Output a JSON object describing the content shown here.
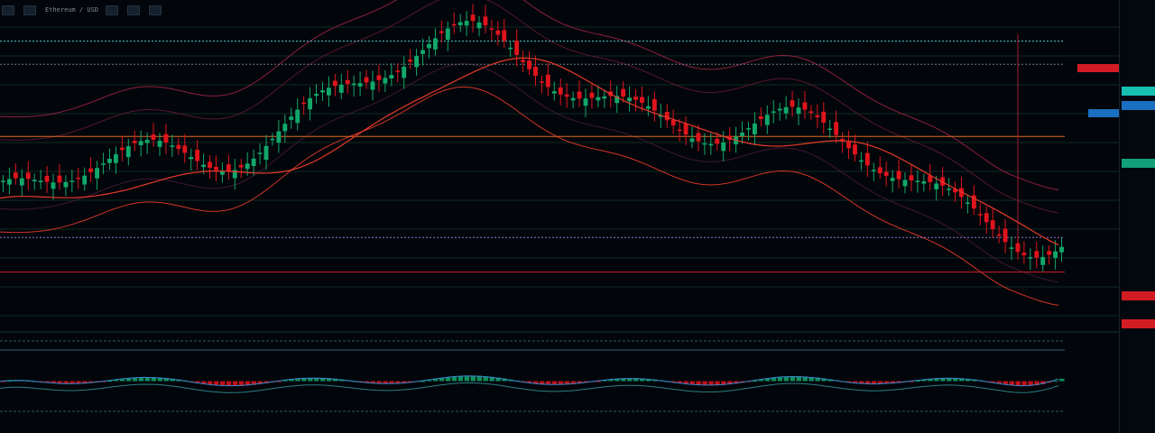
{
  "window": {
    "title": "Ethereum / USD",
    "center_title": "",
    "toolbar_buttons": [
      "toolbar-btn-1",
      "toolbar-btn-2",
      "toolbar-btn-3",
      "toolbar-btn-4",
      "toolbar-btn-5",
      "toolbar-btn-6"
    ]
  },
  "colors": {
    "background": "#02060b",
    "up_candle": "#12a86a",
    "down_candle": "#e0141c",
    "band": "#b0264a",
    "ma": "#e83a2a",
    "orange_line": "#e06a20",
    "cyan_line": "#4ad0d0",
    "grid": "#0f2a22"
  },
  "chart_data": {
    "type": "candlestick",
    "legend": "none",
    "grid": true,
    "ylim": [
      0,
      100
    ],
    "price_panel": {
      "horizontal_levels": [
        {
          "name": "upper-band-level",
          "value": 92,
          "color": "#4ad0d0",
          "style": "dotted"
        },
        {
          "name": "resistance-level",
          "value": 84,
          "color": "#6a7a8a",
          "style": "dotted"
        },
        {
          "name": "orange-level",
          "value": 59,
          "color": "#e06a20",
          "style": "solid"
        },
        {
          "name": "support-level",
          "value": 24,
          "color": "#8a7acc",
          "style": "dotted"
        },
        {
          "name": "red-level",
          "value": 12,
          "color": "#d21c24",
          "style": "solid"
        }
      ]
    },
    "indicator_panel": {
      "ylim": [
        0,
        100
      ],
      "histogram": "momentum"
    }
  },
  "right_axis": {
    "tags": [
      {
        "text": "",
        "style": "plain"
      },
      {
        "text": "",
        "style": "teal"
      },
      {
        "text": "",
        "style": "blue"
      },
      {
        "text": "",
        "style": "green"
      },
      {
        "text": "",
        "style": "red"
      },
      {
        "text": "",
        "style": "red"
      }
    ]
  },
  "flags": {
    "red_flag": "",
    "blue_flag": ""
  }
}
